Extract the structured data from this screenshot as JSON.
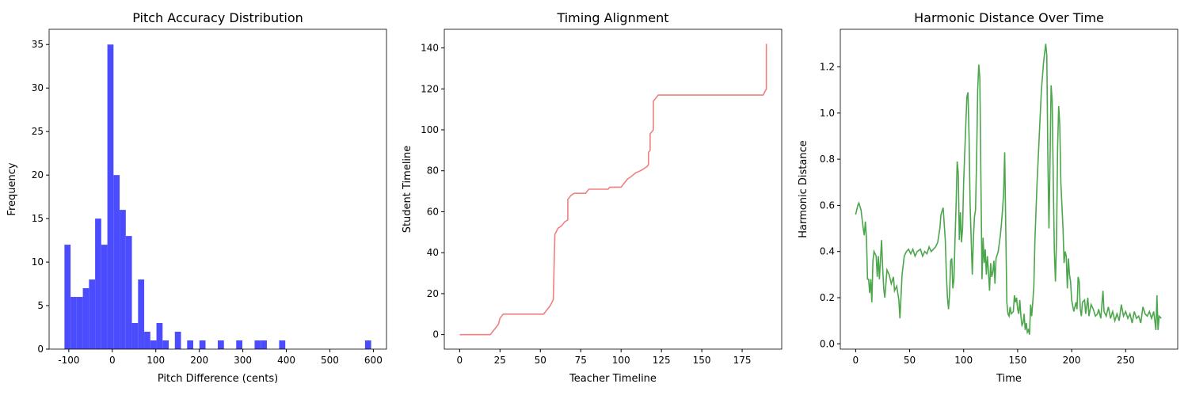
{
  "chart_data": [
    {
      "type": "histogram",
      "title": "Pitch Accuracy Distribution",
      "x_label": "Pitch Difference (cents)",
      "y_label": "Frequency",
      "color": "#4c4cff",
      "bins": [
        -110,
        -95.9,
        -81.8,
        -67.7,
        -53.6,
        -39.5,
        -25.4,
        -11.3,
        2.8,
        16.9,
        31,
        45.1,
        59.2,
        73.3,
        87.4,
        101.5,
        115.6,
        129.7,
        143.8,
        157.9,
        172,
        186.1,
        200.2,
        214.3,
        228.4,
        242.5,
        256.6,
        270.7,
        284.8,
        298.9,
        313,
        327.1,
        341.2,
        355.3,
        369.4,
        383.5,
        397.6,
        411.7,
        425.8,
        439.9,
        454,
        468.1,
        482.2,
        496.3,
        510.4,
        524.5,
        538.6,
        552.7,
        566.8,
        580.9,
        595
      ],
      "values": [
        12,
        6,
        6,
        7,
        8,
        15,
        12,
        35,
        20,
        16,
        13,
        3,
        8,
        2,
        1,
        3,
        1,
        0,
        2,
        0,
        1,
        0,
        1,
        0,
        0,
        1,
        0,
        0,
        1,
        0,
        0,
        1,
        1,
        0,
        0,
        1,
        0,
        0,
        0,
        0,
        0,
        0,
        0,
        0,
        0,
        0,
        0,
        0,
        0,
        1
      ],
      "xlim": [
        -145.25,
        630.25
      ],
      "ylim": [
        0,
        36.75
      ],
      "xticks": [
        -100,
        0,
        100,
        200,
        300,
        400,
        500,
        600
      ],
      "yticks": [
        0,
        5,
        10,
        15,
        20,
        25,
        30,
        35
      ]
    },
    {
      "type": "line",
      "title": "Timing Alignment",
      "x_label": "Teacher Timeline",
      "y_label": "Student Timeline",
      "color": "#f08080",
      "x": [
        0,
        19,
        24,
        25,
        27,
        52,
        56,
        58,
        59,
        61,
        63,
        65,
        67,
        67,
        69,
        71,
        78,
        80,
        92,
        93,
        100,
        104,
        106,
        109,
        112,
        114,
        116,
        117,
        117,
        118,
        118,
        120,
        120,
        123,
        188,
        190,
        190
      ],
      "values": [
        0,
        0,
        5,
        8,
        10,
        10,
        14,
        17,
        49,
        52,
        53,
        55,
        56,
        66,
        68,
        69,
        69,
        71,
        71,
        72,
        72,
        76,
        77,
        79,
        80,
        81,
        82,
        83,
        89,
        90,
        98,
        100,
        114,
        117,
        117,
        120,
        142
      ],
      "xlim": [
        -9.5,
        199.5
      ],
      "ylim": [
        -7.1,
        149.1
      ],
      "xticks": [
        0,
        25,
        50,
        75,
        100,
        125,
        150,
        175
      ],
      "yticks": [
        0,
        20,
        40,
        60,
        80,
        100,
        120,
        140
      ]
    },
    {
      "type": "line",
      "title": "Harmonic Distance Over Time",
      "x_label": "Time",
      "y_label": "Harmonic Distance",
      "color": "#4ca64c",
      "x": [
        0,
        2,
        3,
        5,
        7,
        8,
        9,
        10,
        11,
        12,
        13,
        14,
        15,
        16,
        17,
        19,
        20,
        21,
        22,
        24,
        25,
        26,
        27,
        29,
        31,
        33,
        35,
        36,
        38,
        40,
        41,
        43,
        45,
        47,
        49,
        51,
        53,
        55,
        57,
        60,
        62,
        64,
        66,
        68,
        70,
        72,
        74,
        76,
        78,
        79,
        81,
        83,
        84,
        85,
        86,
        87,
        88,
        89,
        90,
        91,
        92,
        93,
        94,
        95,
        96,
        97,
        98,
        99,
        100,
        102,
        103,
        104,
        105,
        106,
        107,
        108,
        109,
        110,
        111,
        112,
        113,
        114,
        115,
        116,
        117,
        118,
        119,
        120,
        121,
        122,
        123,
        124,
        125,
        126,
        127,
        128,
        129,
        130,
        132,
        134,
        135,
        136,
        137,
        138,
        139,
        140,
        141,
        142,
        143,
        144,
        146,
        147,
        148,
        149,
        150,
        151,
        152,
        153,
        154,
        155,
        156,
        157,
        158,
        159,
        160,
        161,
        162,
        163,
        164,
        165,
        166,
        168,
        170,
        172,
        174,
        176,
        177,
        178,
        179,
        180,
        181,
        182,
        183,
        184,
        185,
        186,
        187,
        188,
        189,
        190,
        191,
        192,
        193,
        194,
        195,
        196,
        197,
        198,
        199,
        200,
        202,
        204,
        205,
        206,
        207,
        208,
        209,
        210,
        212,
        213,
        215,
        216,
        218,
        220,
        222,
        224,
        225,
        227,
        229,
        230,
        232,
        234,
        236,
        238,
        240,
        242,
        244,
        246,
        248,
        250,
        252,
        254,
        256,
        258,
        260,
        262,
        264,
        266,
        268,
        270,
        272,
        274,
        276,
        278,
        279,
        280,
        281,
        283
      ],
      "values": [
        0.56,
        0.6,
        0.61,
        0.58,
        0.5,
        0.47,
        0.53,
        0.46,
        0.28,
        0.28,
        0.22,
        0.28,
        0.18,
        0.36,
        0.4,
        0.38,
        0.29,
        0.38,
        0.28,
        0.45,
        0.33,
        0.24,
        0.2,
        0.32,
        0.3,
        0.26,
        0.29,
        0.23,
        0.25,
        0.19,
        0.11,
        0.3,
        0.38,
        0.4,
        0.41,
        0.39,
        0.41,
        0.38,
        0.4,
        0.41,
        0.38,
        0.4,
        0.39,
        0.42,
        0.4,
        0.41,
        0.42,
        0.44,
        0.5,
        0.56,
        0.59,
        0.45,
        0.3,
        0.2,
        0.15,
        0.22,
        0.36,
        0.37,
        0.24,
        0.28,
        0.45,
        0.6,
        0.79,
        0.74,
        0.45,
        0.57,
        0.44,
        0.5,
        0.7,
        0.95,
        1.07,
        1.09,
        0.9,
        0.6,
        0.45,
        0.3,
        0.45,
        0.55,
        0.58,
        0.8,
        1.1,
        1.21,
        1.15,
        0.7,
        0.28,
        0.46,
        0.35,
        0.41,
        0.3,
        0.38,
        0.31,
        0.23,
        0.35,
        0.29,
        0.31,
        0.36,
        0.26,
        0.37,
        0.4,
        0.47,
        0.52,
        0.58,
        0.65,
        0.83,
        0.5,
        0.18,
        0.13,
        0.12,
        0.16,
        0.13,
        0.14,
        0.21,
        0.18,
        0.2,
        0.15,
        0.13,
        0.19,
        0.12,
        0.08,
        0.09,
        0.13,
        0.06,
        0.09,
        0.05,
        0.06,
        0.04,
        0.17,
        0.12,
        0.18,
        0.25,
        0.45,
        0.7,
        0.9,
        1.1,
        1.22,
        1.3,
        1.25,
        0.8,
        0.5,
        0.8,
        1.12,
        1.05,
        0.7,
        0.4,
        0.27,
        0.45,
        0.85,
        1.03,
        0.95,
        0.7,
        0.6,
        0.5,
        0.35,
        0.4,
        0.38,
        0.24,
        0.37,
        0.3,
        0.27,
        0.19,
        0.14,
        0.18,
        0.15,
        0.29,
        0.27,
        0.15,
        0.12,
        0.18,
        0.19,
        0.13,
        0.2,
        0.12,
        0.17,
        0.15,
        0.12,
        0.13,
        0.15,
        0.11,
        0.23,
        0.14,
        0.12,
        0.16,
        0.11,
        0.14,
        0.1,
        0.13,
        0.1,
        0.17,
        0.12,
        0.14,
        0.11,
        0.13,
        0.09,
        0.14,
        0.11,
        0.12,
        0.09,
        0.16,
        0.13,
        0.12,
        0.14,
        0.11,
        0.14,
        0.06,
        0.21,
        0.06,
        0.12,
        0.11
      ],
      "xlim": [
        -14.2,
        298.2
      ],
      "ylim": [
        -0.023,
        1.363
      ],
      "xticks": [
        0,
        50,
        100,
        150,
        200,
        250
      ],
      "yticks": [
        {
          "value": 0,
          "label": "0.0"
        },
        0.2,
        0.4,
        0.6,
        0.8,
        {
          "value": 1,
          "label": "1.0"
        },
        1.2
      ]
    }
  ]
}
